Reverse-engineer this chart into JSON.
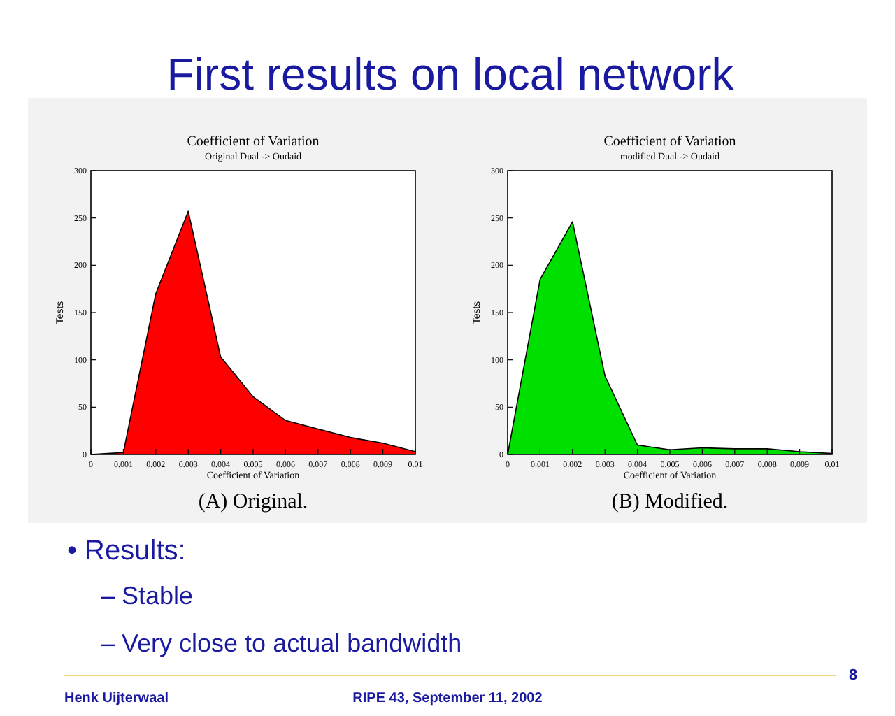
{
  "chart_data": [
    {
      "type": "other",
      "title": "First results on local network",
      "annotations": [
        "• Results:",
        "– Stable",
        "– Very close to actual bandwidth",
        "Henk Uijterwaal",
        "RIPE 43, September 11, 2002",
        "8"
      ]
    },
    {
      "type": "area",
      "title": "Coefficient of Variation",
      "subtitle": "Original Dual -> Oudaid",
      "xlabel": "Coefficient of Variation",
      "ylabel": "Tests",
      "annotations": [
        "(A) Original."
      ],
      "x": [
        0,
        0.0005,
        0.001,
        0.002,
        0.003,
        0.004,
        0.005,
        0.006,
        0.007,
        0.008,
        0.009,
        0.01
      ],
      "series": [
        {
          "color": "#ff0000",
          "values": [
            0,
            1,
            2,
            170,
            257,
            103,
            61,
            36,
            27,
            18,
            12,
            3
          ]
        }
      ],
      "xlim": [
        0,
        0.01
      ],
      "ylim": [
        0,
        300
      ],
      "xticks": [
        0,
        0.001,
        0.002,
        0.003,
        0.004,
        0.005,
        0.006,
        0.007,
        0.008,
        0.009,
        0.01
      ],
      "yticks": [
        0,
        50,
        100,
        150,
        200,
        250,
        300
      ]
    },
    {
      "type": "area",
      "title": "Coefficient of Variation",
      "subtitle": "modified Dual -> Oudaid",
      "xlabel": "Coefficient of Variation",
      "ylabel": "Tests",
      "annotations": [
        "(B) Modified."
      ],
      "x": [
        0,
        0.001,
        0.002,
        0.003,
        0.004,
        0.005,
        0.006,
        0.007,
        0.008,
        0.009,
        0.01
      ],
      "series": [
        {
          "color": "#00e000",
          "values": [
            0,
            185,
            246,
            83,
            10,
            5,
            7,
            6,
            6,
            3,
            1
          ]
        }
      ],
      "xlim": [
        0,
        0.01
      ],
      "ylim": [
        0,
        300
      ],
      "xticks": [
        0,
        0.001,
        0.002,
        0.003,
        0.004,
        0.005,
        0.006,
        0.007,
        0.008,
        0.009,
        0.01
      ],
      "yticks": [
        0,
        50,
        100,
        150,
        200,
        250,
        300
      ]
    }
  ]
}
